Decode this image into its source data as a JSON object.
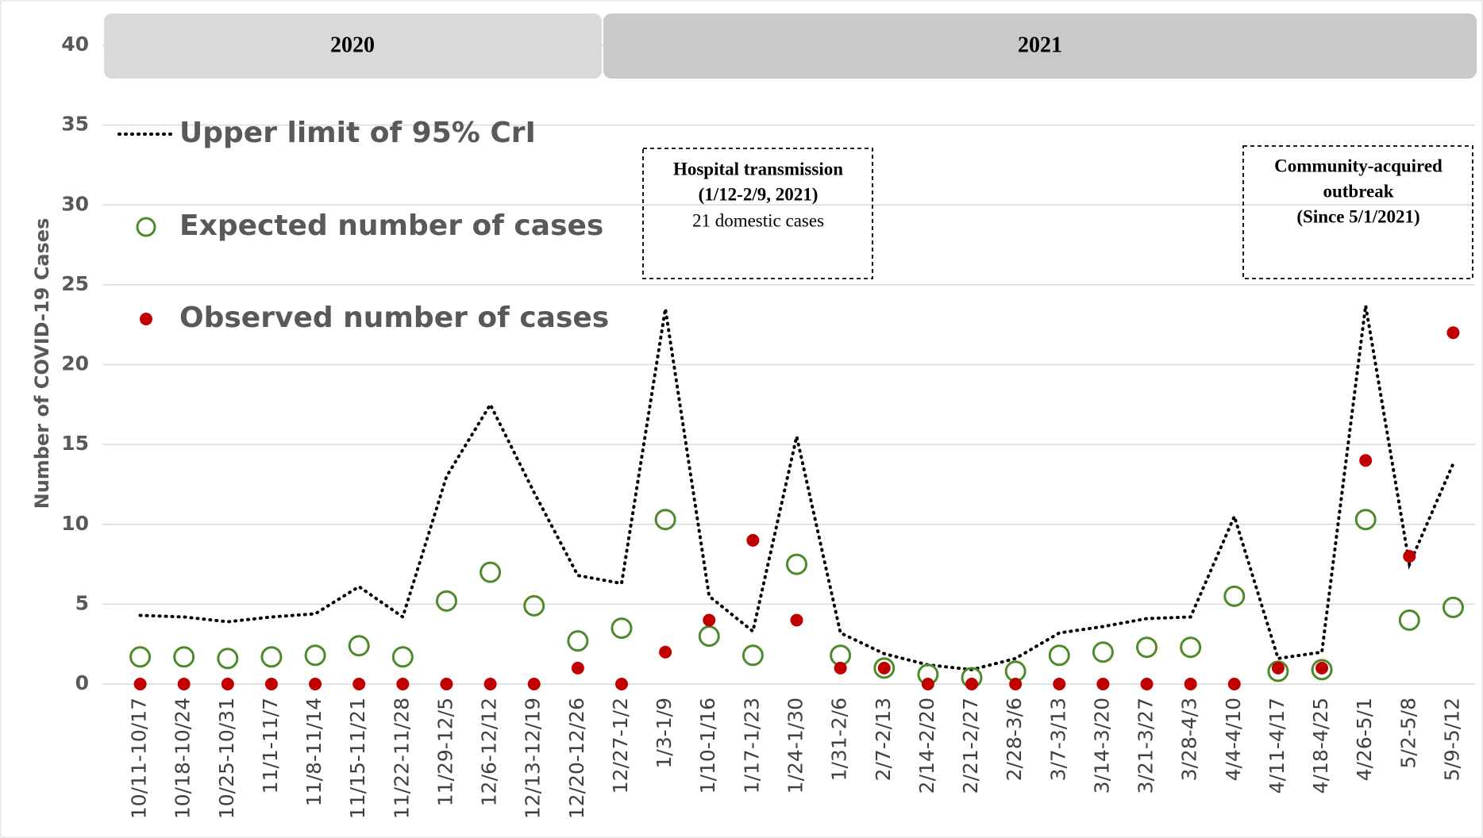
{
  "chart_data": {
    "type": "line",
    "y_label": "Number of COVID-19 Cases",
    "categories": [
      "10/11-10/17",
      "10/18-10/24",
      "10/25-10/31",
      "11/1-11/7",
      "11/8-11/14",
      "11/15-11/21",
      "11/22-11/28",
      "11/29-12/5",
      "12/6-12/12",
      "12/13-12/19",
      "12/20-12/26",
      "12/27-1/2",
      "1/3-1/9",
      "1/10-1/16",
      "1/17-1/23",
      "1/24-1/30",
      "1/31-2/6",
      "2/7-2/13",
      "2/14-2/20",
      "2/21-2/27",
      "2/28-3/6",
      "3/7-3/13",
      "3/14-3/20",
      "3/21-3/27",
      "3/28-4/3",
      "4/4-4/10",
      "4/11-4/17",
      "4/18-4/25",
      "4/26-5/1",
      "5/2-5/8",
      "5/9-5/12"
    ],
    "series": [
      {
        "name": "Upper limit of 95% CrI",
        "color": "#000000",
        "mode": "dotted-line",
        "values": [
          4.3,
          4.2,
          3.9,
          4.2,
          4.4,
          6.1,
          4.2,
          13,
          17.5,
          12,
          6.8,
          6.3,
          23.5,
          5.5,
          3.3,
          15.5,
          3.2,
          1.9,
          1.2,
          0.9,
          1.6,
          3.2,
          3.6,
          4.1,
          4.2,
          10.5,
          1.6,
          2.0,
          23.7,
          7.5,
          13.8
        ]
      },
      {
        "name": "Expected number of cases",
        "color": "#4e8a2a",
        "mode": "open-circle",
        "values": [
          1.7,
          1.7,
          1.6,
          1.7,
          1.8,
          2.4,
          1.7,
          5.2,
          7.0,
          4.9,
          2.7,
          3.5,
          10.3,
          3.0,
          1.8,
          7.5,
          1.8,
          1.0,
          0.6,
          0.4,
          0.8,
          1.8,
          2.0,
          2.3,
          2.3,
          5.5,
          0.8,
          0.9,
          10.3,
          4.0,
          4.8
        ]
      },
      {
        "name": "Observed number of cases",
        "color": "#c00000",
        "mode": "filled-circle",
        "values": [
          0,
          0,
          0,
          0,
          0,
          0,
          0,
          0,
          0,
          0,
          1,
          0,
          2,
          4,
          9,
          4,
          1,
          1,
          0,
          0,
          0,
          0,
          0,
          0,
          0,
          0,
          1,
          1,
          14,
          8,
          22
        ]
      }
    ],
    "ylim": [
      0,
      40
    ],
    "yticks": [
      0,
      5,
      10,
      15,
      20,
      25,
      30,
      35,
      40
    ],
    "grid": true,
    "year_bands": [
      "2020",
      "2021"
    ],
    "annotations": [
      {
        "lines": [
          "Hospital transmission",
          "(1/12-2/9, 2021)",
          "21 domestic cases"
        ]
      },
      {
        "lines": [
          "Community-acquired",
          "outbreak",
          "(Since 5/1/2021)"
        ]
      }
    ]
  }
}
